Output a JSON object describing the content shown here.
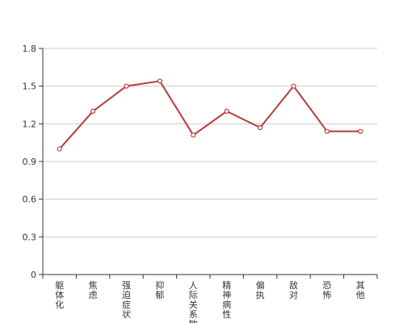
{
  "chart_data": {
    "type": "line",
    "title": "",
    "xlabel": "",
    "ylabel": "",
    "categories": [
      "躯体化",
      "焦虑",
      "强迫症状",
      "抑郁",
      "人际关系敏感",
      "精神病性",
      "偏执",
      "敌对",
      "恐怖",
      "其他"
    ],
    "series": [
      {
        "values": [
          1.0,
          1.3,
          1.5,
          1.54,
          1.11,
          1.3,
          1.17,
          1.5,
          1.14,
          1.14
        ]
      }
    ],
    "ylim": [
      0,
      1.8
    ],
    "yticks": [
      "0",
      "0.3",
      "0.6",
      "0.9",
      "1.2",
      "1.5",
      "1.8"
    ],
    "grid": true,
    "line_color": "#b83b3b",
    "grid_color": "#cccccc",
    "axis_color": "#333333"
  }
}
